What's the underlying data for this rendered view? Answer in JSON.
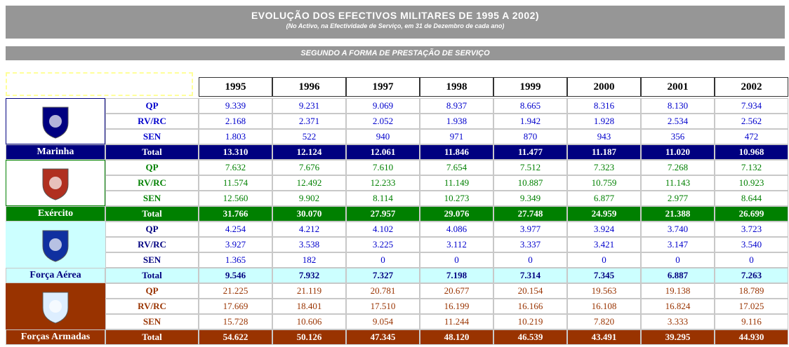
{
  "header": {
    "title": "EVOLUÇÃO  DOS  EFECTIVOS  MILITARES  DE 1995 A 2002)",
    "subtitle": "(No Activo, na Efectividade de Serviço, em 31 de Dezembro de cada ano)"
  },
  "section_title": "SEGUNDO  A  FORMA  DE  PRESTAÇÃO  DE  SERVIÇO",
  "table": {
    "years": [
      "1995",
      "1996",
      "1997",
      "1998",
      "1999",
      "2000",
      "2001",
      "2002"
    ],
    "groups": [
      {
        "name": "Marinha",
        "rows": [
          {
            "label": "QP",
            "values": [
              "9.339",
              "9.231",
              "9.069",
              "8.937",
              "8.665",
              "8.316",
              "8.130",
              "7.934"
            ]
          },
          {
            "label": "RV/RC",
            "values": [
              "2.168",
              "2.371",
              "2.052",
              "1.938",
              "1.942",
              "1.928",
              "2.534",
              "2.562"
            ]
          },
          {
            "label": "SEN",
            "values": [
              "1.803",
              "522",
              "940",
              "971",
              "870",
              "943",
              "356",
              "472"
            ]
          },
          {
            "label": "Total",
            "values": [
              "13.310",
              "12.124",
              "12.061",
              "11.846",
              "11.477",
              "11.187",
              "11.020",
              "10.968"
            ]
          }
        ]
      },
      {
        "name": "Exército",
        "rows": [
          {
            "label": "QP",
            "values": [
              "7.632",
              "7.676",
              "7.610",
              "7.654",
              "7.512",
              "7.323",
              "7.268",
              "7.132"
            ]
          },
          {
            "label": "RV/RC",
            "values": [
              "11.574",
              "12.492",
              "12.233",
              "11.149",
              "10.887",
              "10.759",
              "11.143",
              "10.923"
            ]
          },
          {
            "label": "SEN",
            "values": [
              "12.560",
              "9.902",
              "8.114",
              "10.273",
              "9.349",
              "6.877",
              "2.977",
              "8.644"
            ]
          },
          {
            "label": "Total",
            "values": [
              "31.766",
              "30.070",
              "27.957",
              "29.076",
              "27.748",
              "24.959",
              "21.388",
              "26.699"
            ]
          }
        ]
      },
      {
        "name": "Força Aérea",
        "rows": [
          {
            "label": "QP",
            "values": [
              "4.254",
              "4.212",
              "4.102",
              "4.086",
              "3.977",
              "3.924",
              "3.740",
              "3.723"
            ]
          },
          {
            "label": "RV/RC",
            "values": [
              "3.927",
              "3.538",
              "3.225",
              "3.112",
              "3.337",
              "3.421",
              "3.147",
              "3.540"
            ]
          },
          {
            "label": "SEN",
            "values": [
              "1.365",
              "182",
              "0",
              "0",
              "0",
              "0",
              "0",
              "0"
            ]
          },
          {
            "label": "Total",
            "values": [
              "9.546",
              "7.932",
              "7.327",
              "7.198",
              "7.314",
              "7.345",
              "6.887",
              "7.263"
            ]
          }
        ]
      },
      {
        "name": "Forças Armadas",
        "rows": [
          {
            "label": "QP",
            "values": [
              "21.225",
              "21.119",
              "20.781",
              "20.677",
              "20.154",
              "19.563",
              "19.138",
              "18.789"
            ]
          },
          {
            "label": "RV/RC",
            "values": [
              "17.669",
              "18.401",
              "17.510",
              "16.199",
              "16.166",
              "16.108",
              "16.824",
              "17.025"
            ]
          },
          {
            "label": "SEN",
            "values": [
              "15.728",
              "10.606",
              "9.054",
              "11.244",
              "10.219",
              "7.820",
              "3.333",
              "9.116"
            ]
          },
          {
            "label": "Total",
            "values": [
              "54.622",
              "50.126",
              "47.345",
              "48.120",
              "46.539",
              "43.491",
              "39.295",
              "44.930"
            ]
          }
        ]
      }
    ]
  }
}
